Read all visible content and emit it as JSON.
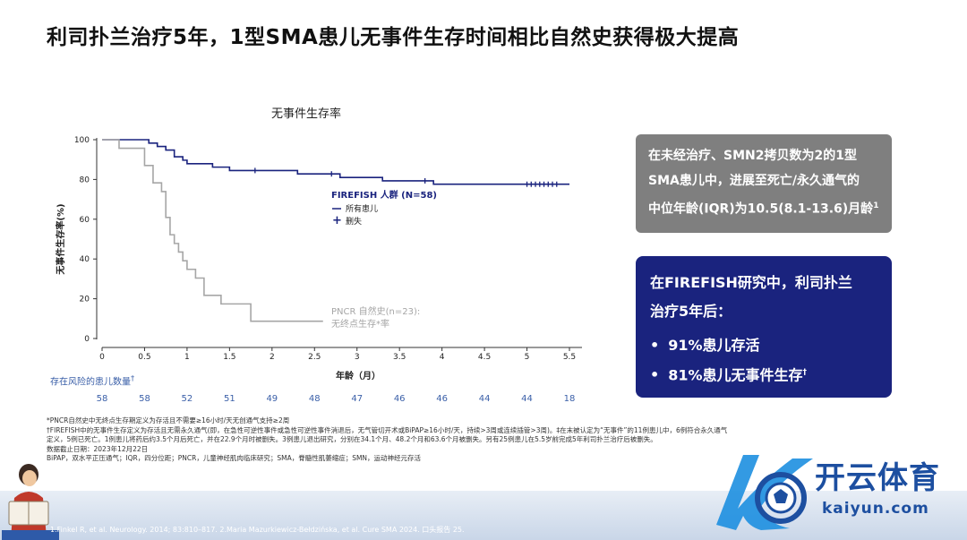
{
  "title": "利司扑兰治疗5年，1型SMA患儿无事件生存时间相比自然史获得极大提高",
  "chart_data": {
    "type": "line",
    "title": "无事件生存率",
    "xlabel": "年龄（月）",
    "ylabel": "无事件生存率(%)",
    "xlim": [
      0,
      5.5
    ],
    "ylim": [
      0,
      100
    ],
    "x_ticks": [
      "0",
      "0.5",
      "1",
      "1.5",
      "2",
      "2.5",
      "3",
      "3.5",
      "4",
      "4.5",
      "5",
      "5.5"
    ],
    "y_ticks": [
      "0",
      "20",
      "40",
      "60",
      "80",
      "100"
    ],
    "grid": false,
    "series": [
      {
        "name": "FIREFISH 人群 (N=58)",
        "color": "#1a237e",
        "x": [
          0,
          0.5,
          0.55,
          0.65,
          0.75,
          0.85,
          0.95,
          1.0,
          1.3,
          1.5,
          2.3,
          2.8,
          3.3,
          3.5,
          3.9,
          5.5
        ],
        "y": [
          100,
          100,
          98.3,
          96.6,
          94.8,
          91.4,
          89.7,
          87.9,
          86.2,
          84.5,
          82.8,
          81.0,
          79.3,
          79.3,
          77.6,
          77.6
        ],
        "censor_x": [
          1.8,
          2.7,
          3.8,
          5.0,
          5.05,
          5.1,
          5.15,
          5.2,
          5.25,
          5.3,
          5.35
        ]
      },
      {
        "name": "PNCR 自然史(n=23): 无终点生存*率",
        "color": "#a6a6a6",
        "x": [
          0,
          0.2,
          0.5,
          0.6,
          0.7,
          0.75,
          0.8,
          0.85,
          0.9,
          0.95,
          1.0,
          1.1,
          1.2,
          1.4,
          1.75,
          2.6
        ],
        "y": [
          100,
          95.7,
          87,
          78.3,
          73.9,
          60.9,
          52.2,
          47.8,
          43.5,
          39.1,
          34.8,
          30.4,
          21.7,
          17.4,
          8.7,
          8.7
        ]
      }
    ],
    "legend": {
      "title": "FIREFISH 人群 (N=58)",
      "items": [
        {
          "symbol": "—",
          "label": "所有患儿"
        },
        {
          "symbol": "+",
          "label": "删失"
        }
      ],
      "pncr_label_1": "PNCR 自然史(n=23):",
      "pncr_label_2": "无终点生存*率"
    },
    "risk_table": {
      "label": "存在风险的患儿数量",
      "label_mark": "†",
      "values": [
        "58",
        "58",
        "52",
        "51",
        "49",
        "48",
        "47",
        "46",
        "46",
        "44",
        "44",
        "18"
      ]
    }
  },
  "box_gray": {
    "line1": "在未经治疗、SMN2拷贝数为2的1型",
    "line2": "SMA患儿中，进展至死亡/永久通气的",
    "line3": "中位年龄(IQR)为10.5(8.1-13.6)月龄",
    "sup": "1"
  },
  "box_blue": {
    "head1": "在FIREFISH研究中，利司扑兰",
    "head2": "治疗5年后：",
    "item1": "91%患儿存活",
    "item2": "81%患儿无事件生存",
    "item2_sup": "†"
  },
  "footnotes": [
    "*PNCR自然史中无终点生存期定义为存活且不需要≥16小时/天无创通气支持≥2周",
    "†FIREFISH中的无事件生存定义为存活且无需永久通气(即，在急性可逆性事件或急性可逆性事件消退后，无气管切开术或BiPAP≥16小时/天，持续>3周或连续插管>3周)。‡在末被认定为“无事件”的11例患儿中，6例符合永久通气",
    "定义，5例已死亡。1例患儿将药后约3.5个月后死亡，并在22.9个月时被删失。3例患儿退出研究，分别在34.1个月、48.2个月和63.6个月被删失。另有25例患儿在5.5岁前完成5年利司扑兰治疗后被删失。",
    "数据截止日期：2023年12月22日",
    "BiPAP，双水平正压通气；IQR，四分位距；PNCR，儿童神经肌肉临床研究；SMA，脊髓性肌萎缩症；SMN，运动神经元存活"
  ],
  "references": "1.Finkel R, et al. Neurology. 2014; 83:810–817. 2.Maria Mazurkiewicz-Bełdzińska, et al. Cure SMA 2024. 口头报告 25.",
  "logo": {
    "cn": "开云体育",
    "en": "kaiyun.com"
  }
}
